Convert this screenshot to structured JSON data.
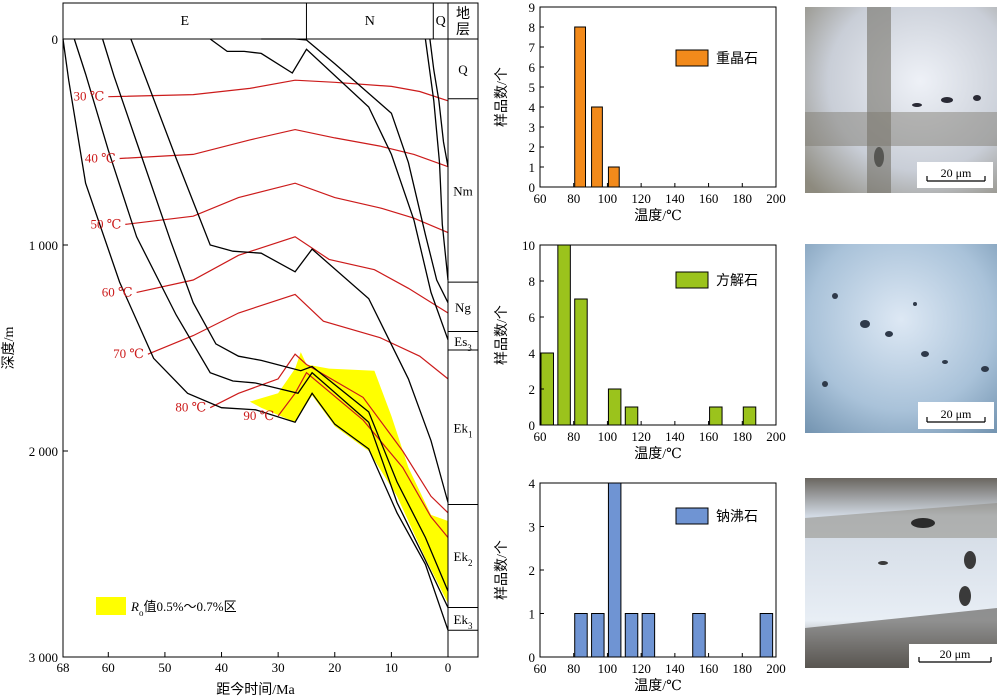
{
  "burial_chart": {
    "type": "line",
    "xlabel": "距今时间/Ma",
    "ylabel": "深度/m",
    "xlim": [
      68,
      0
    ],
    "ylim": [
      0,
      3000
    ],
    "x_ticks": [
      {
        "v": 68,
        "label": "68"
      },
      {
        "v": 60,
        "label": "60"
      },
      {
        "v": 50,
        "label": "50"
      },
      {
        "v": 40,
        "label": "40"
      },
      {
        "v": 30,
        "label": "30"
      },
      {
        "v": 20,
        "label": "20"
      },
      {
        "v": 10,
        "label": "10"
      },
      {
        "v": 0,
        "label": "0"
      }
    ],
    "y_ticks": [
      {
        "v": 0,
        "label": "0"
      },
      {
        "v": 1000,
        "label": "1 000"
      },
      {
        "v": 2000,
        "label": "2 000"
      },
      {
        "v": 3000,
        "label": "3 000"
      }
    ],
    "periods": [
      {
        "label": "E",
        "from": 68,
        "to": 25
      },
      {
        "label": "N",
        "from": 25,
        "to": 2.6
      },
      {
        "label": "Q",
        "from": 2.6,
        "to": 0
      }
    ],
    "strata_header": "地层",
    "strata": [
      {
        "label": "Q",
        "sub": "",
        "top": 0,
        "bottom": 290
      },
      {
        "label": "Nm",
        "sub": "",
        "top": 290,
        "bottom": 1180
      },
      {
        "label": "Ng",
        "sub": "",
        "top": 1180,
        "bottom": 1420
      },
      {
        "label": "Es",
        "sub": "3",
        "top": 1420,
        "bottom": 1510
      },
      {
        "label": "Ek",
        "sub": "1",
        "top": 1510,
        "bottom": 2260
      },
      {
        "label": "Ek",
        "sub": "2",
        "top": 2260,
        "bottom": 2760
      },
      {
        "label": "Ek",
        "sub": "3",
        "top": 2760,
        "bottom": 2870
      }
    ],
    "burial_curves": [
      [
        [
          68,
          0
        ],
        [
          67,
          200
        ],
        [
          64,
          700
        ],
        [
          58,
          1180
        ],
        [
          52,
          1550
        ],
        [
          46,
          1720
        ],
        [
          40,
          1790
        ],
        [
          34,
          1800
        ],
        [
          27,
          1860
        ],
        [
          24,
          1720
        ],
        [
          20,
          1870
        ],
        [
          14,
          1990
        ],
        [
          9,
          2300
        ],
        [
          4,
          2550
        ],
        [
          0,
          2870
        ]
      ],
      [
        [
          66,
          0
        ],
        [
          64,
          170
        ],
        [
          60,
          540
        ],
        [
          55,
          960
        ],
        [
          48,
          1340
        ],
        [
          42,
          1620
        ],
        [
          38,
          1660
        ],
        [
          34,
          1670
        ],
        [
          26.5,
          1720
        ],
        [
          24,
          1620
        ],
        [
          14,
          1860
        ],
        [
          9,
          2250
        ],
        [
          4,
          2530
        ],
        [
          0,
          2760
        ]
      ],
      [
        [
          61,
          0
        ],
        [
          59,
          180
        ],
        [
          55,
          500
        ],
        [
          49,
          980
        ],
        [
          45,
          1280
        ],
        [
          41,
          1480
        ],
        [
          37,
          1540
        ],
        [
          33,
          1560
        ],
        [
          26,
          1610
        ],
        [
          24,
          1590
        ],
        [
          14,
          1810
        ],
        [
          9,
          2150
        ],
        [
          4,
          2420
        ],
        [
          0,
          2680
        ]
      ],
      [
        [
          56,
          0
        ],
        [
          48,
          580
        ],
        [
          42,
          1000
        ],
        [
          38,
          1030
        ],
        [
          33,
          1040
        ],
        [
          27,
          1130
        ],
        [
          24,
          1020
        ],
        [
          14,
          1260
        ],
        [
          7,
          1650
        ],
        [
          3,
          1950
        ],
        [
          0,
          2250
        ]
      ],
      [
        [
          42,
          0
        ],
        [
          39,
          60
        ],
        [
          36,
          60
        ],
        [
          33,
          70
        ],
        [
          27.5,
          165
        ],
        [
          25,
          50
        ],
        [
          14,
          330
        ],
        [
          10,
          560
        ],
        [
          6,
          880
        ],
        [
          3,
          1230
        ],
        [
          0,
          1460
        ]
      ],
      [
        [
          33,
          0
        ],
        [
          27,
          0
        ],
        [
          25,
          5
        ],
        [
          20,
          120
        ],
        [
          10,
          360
        ],
        [
          7,
          600
        ],
        [
          4,
          950
        ],
        [
          2,
          1170
        ],
        [
          0,
          1280
        ]
      ],
      [
        [
          4,
          0
        ],
        [
          3.5,
          100
        ],
        [
          2.5,
          300
        ],
        [
          1.5,
          600
        ],
        [
          1,
          900
        ],
        [
          0,
          1170
        ]
      ],
      [
        [
          3.2,
          0
        ],
        [
          2.5,
          150
        ],
        [
          1.6,
          300
        ],
        [
          0.8,
          500
        ],
        [
          0,
          620
        ]
      ]
    ],
    "isotherms": [
      {
        "label": "30 ℃",
        "points": [
          [
            60,
            280
          ],
          [
            45,
            270
          ],
          [
            35,
            240
          ],
          [
            27,
            200
          ],
          [
            20,
            210
          ],
          [
            10,
            230
          ],
          [
            5,
            255
          ],
          [
            0,
            300
          ]
        ]
      },
      {
        "label": "40 ℃",
        "points": [
          [
            58,
            580
          ],
          [
            45,
            560
          ],
          [
            35,
            490
          ],
          [
            27,
            440
          ],
          [
            20,
            480
          ],
          [
            12,
            520
          ],
          [
            6,
            560
          ],
          [
            0,
            620
          ]
        ]
      },
      {
        "label": "50 ℃",
        "points": [
          [
            57,
            900
          ],
          [
            45,
            860
          ],
          [
            37,
            770
          ],
          [
            27,
            700
          ],
          [
            20,
            770
          ],
          [
            12,
            820
          ],
          [
            6,
            870
          ],
          [
            0,
            940
          ]
        ]
      },
      {
        "label": "60 ℃",
        "points": [
          [
            55,
            1230
          ],
          [
            45,
            1170
          ],
          [
            37,
            1050
          ],
          [
            27,
            960
          ],
          [
            21,
            1070
          ],
          [
            13,
            1120
          ],
          [
            7,
            1210
          ],
          [
            0,
            1330
          ]
        ]
      },
      {
        "label": "70 ℃",
        "points": [
          [
            53,
            1530
          ],
          [
            45,
            1440
          ],
          [
            37,
            1330
          ],
          [
            27,
            1240
          ],
          [
            22,
            1370
          ],
          [
            12,
            1450
          ],
          [
            5,
            1540
          ],
          [
            0,
            1650
          ]
        ]
      },
      {
        "label": "80 ℃",
        "points": [
          [
            42,
            1790
          ],
          [
            37,
            1720
          ],
          [
            30,
            1650
          ],
          [
            27,
            1530
          ],
          [
            25,
            1580
          ],
          [
            15,
            1740
          ],
          [
            8,
            2000
          ],
          [
            3,
            2220
          ],
          [
            0,
            2300
          ]
        ]
      },
      {
        "label": "90 ℃",
        "points": [
          [
            30,
            1830
          ],
          [
            27,
            1720
          ],
          [
            25,
            1620
          ],
          [
            15,
            1850
          ],
          [
            8,
            2080
          ],
          [
            3,
            2320
          ],
          [
            0,
            2420
          ]
        ]
      }
    ],
    "ro_zone": {
      "legend": "值0.5%～0.7%区",
      "legend_symbol": "R",
      "legend_sub": "o",
      "color": "#ffff00",
      "polygon": [
        [
          35,
          1760
        ],
        [
          30,
          1720
        ],
        [
          27,
          1600
        ],
        [
          26,
          1520
        ],
        [
          25,
          1580
        ],
        [
          21,
          1600
        ],
        [
          13,
          1610
        ],
        [
          10,
          1830
        ],
        [
          7,
          2080
        ],
        [
          3,
          2310
        ],
        [
          0,
          2340
        ],
        [
          0,
          2740
        ],
        [
          4,
          2520
        ],
        [
          9,
          2220
        ],
        [
          14,
          2000
        ],
        [
          20,
          1880
        ],
        [
          24,
          1730
        ],
        [
          27,
          1860
        ],
        [
          33,
          1790
        ]
      ]
    },
    "line_color": "#000000",
    "isotherm_color": "#cc1b1b"
  },
  "histograms": [
    {
      "type": "bar",
      "legend": "重晶石",
      "color": "#f28a1b",
      "ylabel": "样品数/个",
      "xlabel": "温度/℃",
      "xlim": [
        60,
        200
      ],
      "x_ticks": [
        60,
        80,
        100,
        120,
        140,
        160,
        180,
        200
      ],
      "ylim": [
        0,
        9
      ],
      "y_ticks": [
        0,
        1,
        2,
        3,
        4,
        5,
        6,
        7,
        8,
        9
      ],
      "bin_width": 7,
      "bins": [
        {
          "x": 80,
          "value": 8
        },
        {
          "x": 90,
          "value": 4
        },
        {
          "x": 100,
          "value": 1
        }
      ]
    },
    {
      "type": "bar",
      "legend": "方解石",
      "color": "#9bc31c",
      "ylabel": "样品数/个",
      "xlabel": "温度/℃",
      "xlim": [
        60,
        200
      ],
      "x_ticks": [
        60,
        80,
        100,
        120,
        140,
        160,
        180,
        200
      ],
      "ylim": [
        0,
        10
      ],
      "y_ticks": [
        0,
        2,
        4,
        6,
        8,
        10
      ],
      "bin_width": 8,
      "bins": [
        {
          "x": 60,
          "value": 4
        },
        {
          "x": 70,
          "value": 10
        },
        {
          "x": 80,
          "value": 7
        },
        {
          "x": 100,
          "value": 2
        },
        {
          "x": 110,
          "value": 1
        },
        {
          "x": 160,
          "value": 1
        },
        {
          "x": 180,
          "value": 1
        }
      ]
    },
    {
      "type": "bar",
      "legend": "钠沸石",
      "color": "#6f94d3",
      "ylabel": "样品数/个",
      "xlabel": "温度/℃",
      "xlim": [
        60,
        200
      ],
      "x_ticks": [
        60,
        80,
        100,
        120,
        140,
        160,
        180,
        200
      ],
      "ylim": [
        0,
        4
      ],
      "y_ticks": [
        0,
        1,
        2,
        3,
        4
      ],
      "bin_width": 8,
      "bins": [
        {
          "x": 80,
          "value": 1
        },
        {
          "x": 90,
          "value": 1
        },
        {
          "x": 100,
          "value": 4
        },
        {
          "x": 110,
          "value": 1
        },
        {
          "x": 120,
          "value": 1
        },
        {
          "x": 150,
          "value": 1
        },
        {
          "x": 190,
          "value": 1
        }
      ]
    }
  ],
  "photos": [
    {
      "scale_label": "20 μm"
    },
    {
      "scale_label": "20 μm"
    },
    {
      "scale_label": "20 μm"
    }
  ]
}
